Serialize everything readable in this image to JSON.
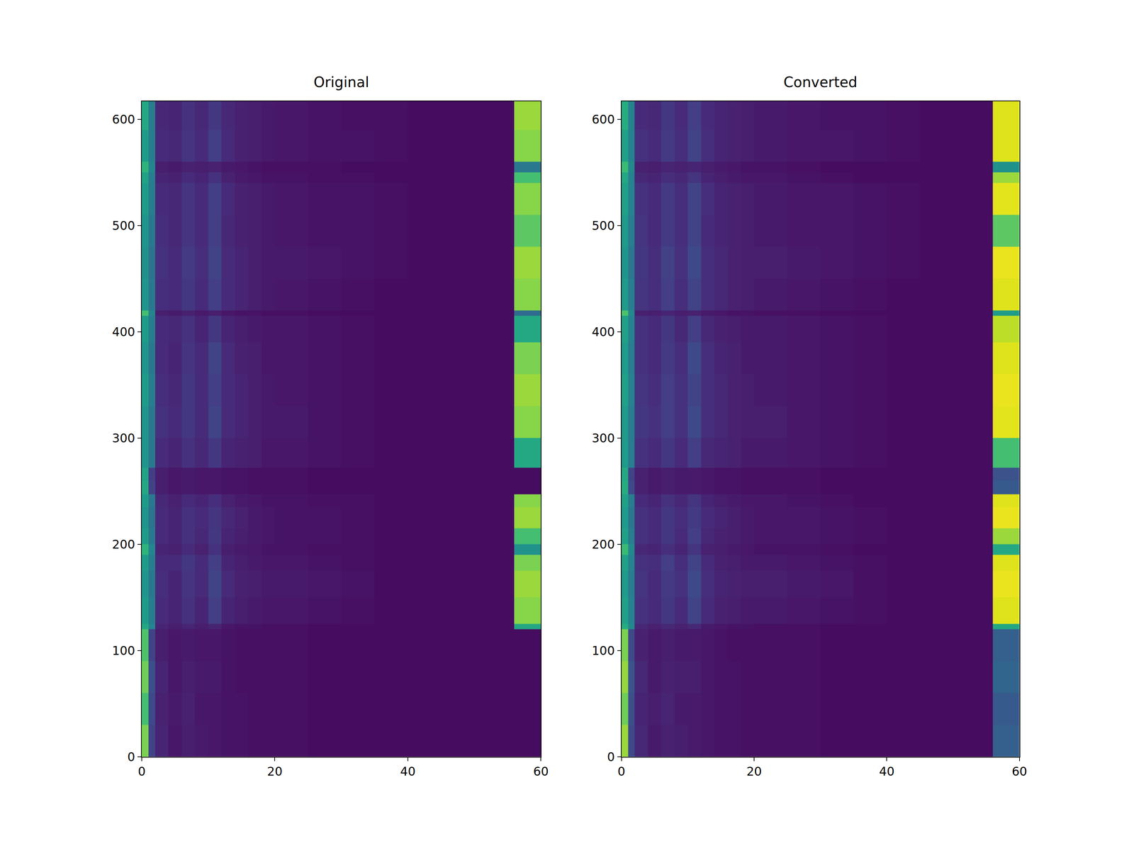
{
  "chart_data": [
    {
      "type": "heatmap",
      "title": "Original",
      "x": [
        0,
        1,
        2,
        4,
        6,
        8,
        10,
        12,
        14,
        16,
        18,
        20,
        25,
        30,
        35,
        40,
        45,
        50,
        56,
        60
      ],
      "y": [
        0,
        30,
        60,
        90,
        120,
        125,
        150,
        175,
        190,
        200,
        215,
        235,
        247,
        260,
        272,
        300,
        330,
        360,
        390,
        415,
        420,
        450,
        480,
        510,
        540,
        550,
        560,
        590,
        617
      ],
      "z": [
        [
          80,
          20,
          10,
          6,
          8,
          7,
          6,
          5,
          5,
          4,
          4,
          4,
          3,
          3,
          3,
          3,
          3,
          3,
          3
        ],
        [
          70,
          22,
          9,
          7,
          9,
          6,
          6,
          5,
          5,
          4,
          4,
          4,
          3,
          3,
          3,
          3,
          3,
          3,
          3
        ],
        [
          78,
          24,
          10,
          6,
          8,
          7,
          7,
          5,
          4,
          4,
          4,
          4,
          3,
          3,
          3,
          3,
          3,
          3,
          3
        ],
        [
          72,
          20,
          8,
          6,
          7,
          6,
          6,
          5,
          4,
          4,
          4,
          4,
          3,
          3,
          3,
          3,
          3,
          3,
          3
        ],
        [
          60,
          45,
          10,
          8,
          10,
          8,
          10,
          6,
          5,
          5,
          4,
          4,
          3,
          3,
          3,
          3,
          3,
          3,
          60
        ],
        [
          55,
          42,
          12,
          10,
          14,
          10,
          18,
          10,
          8,
          7,
          6,
          6,
          5,
          4,
          3,
          3,
          3,
          3,
          82
        ],
        [
          52,
          40,
          13,
          10,
          15,
          12,
          20,
          12,
          9,
          8,
          7,
          7,
          6,
          5,
          3,
          3,
          3,
          3,
          85
        ],
        [
          55,
          42,
          12,
          12,
          16,
          12,
          18,
          10,
          8,
          7,
          6,
          6,
          5,
          4,
          3,
          3,
          3,
          3,
          80
        ],
        [
          65,
          45,
          10,
          9,
          12,
          9,
          14,
          8,
          7,
          6,
          5,
          5,
          4,
          4,
          3,
          3,
          3,
          3,
          50
        ],
        [
          55,
          40,
          12,
          10,
          14,
          11,
          16,
          10,
          8,
          7,
          6,
          5,
          5,
          4,
          3,
          3,
          3,
          3,
          70
        ],
        [
          52,
          38,
          12,
          10,
          14,
          12,
          15,
          11,
          9,
          7,
          6,
          5,
          5,
          4,
          3,
          3,
          3,
          3,
          85
        ],
        [
          55,
          40,
          11,
          9,
          12,
          10,
          13,
          9,
          7,
          6,
          5,
          5,
          4,
          4,
          3,
          3,
          3,
          3,
          82
        ],
        [
          60,
          20,
          8,
          6,
          7,
          6,
          6,
          5,
          5,
          4,
          4,
          4,
          3,
          3,
          3,
          3,
          3,
          3,
          3
        ],
        [
          58,
          18,
          8,
          6,
          7,
          6,
          6,
          5,
          5,
          4,
          4,
          4,
          3,
          3,
          3,
          3,
          3,
          3,
          3
        ],
        [
          52,
          40,
          12,
          10,
          14,
          11,
          16,
          10,
          9,
          8,
          6,
          6,
          5,
          4,
          3,
          3,
          3,
          3,
          60
        ],
        [
          52,
          40,
          14,
          12,
          16,
          12,
          20,
          12,
          10,
          8,
          7,
          7,
          5,
          4,
          3,
          3,
          3,
          3,
          82
        ],
        [
          55,
          42,
          13,
          11,
          16,
          12,
          18,
          12,
          10,
          8,
          7,
          6,
          5,
          4,
          3,
          3,
          3,
          3,
          85
        ],
        [
          52,
          40,
          12,
          10,
          15,
          12,
          20,
          12,
          9,
          8,
          6,
          6,
          5,
          4,
          3,
          3,
          3,
          3,
          80
        ],
        [
          55,
          42,
          12,
          11,
          14,
          10,
          16,
          10,
          8,
          7,
          6,
          6,
          5,
          4,
          3,
          3,
          3,
          3,
          60
        ],
        [
          70,
          45,
          8,
          7,
          9,
          7,
          8,
          6,
          5,
          5,
          4,
          4,
          3,
          3,
          3,
          3,
          3,
          3,
          35
        ],
        [
          52,
          40,
          13,
          12,
          16,
          12,
          18,
          12,
          10,
          8,
          7,
          6,
          5,
          4,
          3,
          3,
          3,
          3,
          82
        ],
        [
          50,
          38,
          14,
          12,
          17,
          13,
          20,
          12,
          10,
          8,
          7,
          7,
          6,
          5,
          4,
          3,
          3,
          3,
          85
        ],
        [
          52,
          40,
          13,
          11,
          15,
          12,
          18,
          11,
          9,
          8,
          7,
          6,
          5,
          5,
          4,
          3,
          3,
          3,
          75
        ],
        [
          55,
          42,
          12,
          11,
          15,
          12,
          18,
          12,
          9,
          8,
          7,
          6,
          5,
          5,
          4,
          3,
          3,
          3,
          82
        ],
        [
          58,
          42,
          10,
          9,
          12,
          10,
          14,
          9,
          7,
          6,
          5,
          5,
          4,
          4,
          3,
          3,
          3,
          3,
          70
        ],
        [
          65,
          45,
          8,
          7,
          9,
          8,
          9,
          7,
          6,
          5,
          4,
          4,
          4,
          3,
          3,
          3,
          3,
          3,
          40
        ],
        [
          55,
          42,
          12,
          11,
          15,
          12,
          18,
          12,
          9,
          8,
          7,
          6,
          5,
          5,
          4,
          3,
          3,
          3,
          82
        ],
        [
          60,
          42,
          11,
          10,
          14,
          11,
          16,
          11,
          9,
          8,
          7,
          6,
          5,
          4,
          4,
          3,
          3,
          3,
          85
        ]
      ],
      "color_range": [
        0,
        100
      ],
      "xlim": [
        0,
        60
      ],
      "xticks": [
        0,
        20,
        40,
        60
      ],
      "ylim": [
        0,
        617
      ],
      "yticks": [
        0,
        100,
        200,
        300,
        400,
        500,
        600
      ]
    },
    {
      "type": "heatmap",
      "title": "Converted",
      "x": [
        0,
        1,
        2,
        4,
        6,
        8,
        10,
        12,
        14,
        16,
        18,
        20,
        25,
        30,
        35,
        40,
        45,
        50,
        56,
        60
      ],
      "y": [
        0,
        30,
        60,
        90,
        120,
        125,
        150,
        175,
        190,
        200,
        215,
        235,
        247,
        260,
        272,
        300,
        330,
        360,
        390,
        415,
        420,
        450,
        480,
        510,
        540,
        550,
        560,
        590,
        617
      ],
      "z": [
        [
          85,
          22,
          11,
          7,
          9,
          8,
          7,
          6,
          5,
          5,
          4,
          4,
          4,
          3,
          3,
          3,
          3,
          3,
          30
        ],
        [
          78,
          24,
          10,
          8,
          10,
          7,
          7,
          6,
          5,
          5,
          4,
          4,
          4,
          3,
          3,
          3,
          3,
          3,
          28
        ],
        [
          84,
          26,
          11,
          7,
          9,
          8,
          8,
          6,
          5,
          5,
          4,
          4,
          4,
          3,
          3,
          3,
          3,
          3,
          32
        ],
        [
          80,
          22,
          9,
          7,
          8,
          7,
          7,
          6,
          5,
          4,
          4,
          4,
          4,
          3,
          3,
          3,
          3,
          3,
          30
        ],
        [
          62,
          47,
          11,
          9,
          11,
          9,
          11,
          7,
          6,
          5,
          5,
          4,
          4,
          3,
          3,
          3,
          3,
          3,
          60
        ],
        [
          57,
          44,
          14,
          12,
          16,
          12,
          20,
          12,
          9,
          8,
          7,
          7,
          6,
          5,
          4,
          3,
          3,
          3,
          95
        ],
        [
          54,
          42,
          15,
          12,
          17,
          14,
          22,
          13,
          10,
          9,
          8,
          8,
          7,
          6,
          4,
          3,
          3,
          3,
          97
        ],
        [
          57,
          44,
          14,
          13,
          18,
          13,
          20,
          12,
          9,
          8,
          7,
          7,
          6,
          5,
          4,
          3,
          3,
          3,
          95
        ],
        [
          68,
          47,
          11,
          10,
          13,
          10,
          15,
          9,
          8,
          7,
          6,
          5,
          5,
          4,
          3,
          3,
          3,
          3,
          60
        ],
        [
          57,
          42,
          14,
          12,
          16,
          12,
          18,
          11,
          9,
          8,
          7,
          6,
          6,
          5,
          4,
          3,
          3,
          3,
          85
        ],
        [
          54,
          40,
          14,
          12,
          16,
          13,
          17,
          12,
          10,
          8,
          7,
          6,
          6,
          5,
          4,
          3,
          3,
          3,
          97
        ],
        [
          57,
          42,
          12,
          10,
          14,
          11,
          15,
          10,
          8,
          7,
          6,
          6,
          5,
          4,
          3,
          3,
          3,
          3,
          95
        ],
        [
          62,
          22,
          9,
          7,
          8,
          7,
          7,
          6,
          5,
          5,
          4,
          4,
          4,
          3,
          3,
          3,
          3,
          3,
          28
        ],
        [
          60,
          20,
          9,
          7,
          8,
          7,
          7,
          6,
          5,
          5,
          4,
          4,
          4,
          3,
          3,
          3,
          3,
          3,
          25
        ],
        [
          54,
          42,
          14,
          12,
          16,
          12,
          18,
          11,
          10,
          9,
          7,
          7,
          6,
          5,
          4,
          3,
          3,
          3,
          70
        ],
        [
          54,
          42,
          16,
          14,
          18,
          14,
          22,
          13,
          11,
          9,
          8,
          8,
          6,
          5,
          4,
          3,
          3,
          3,
          96
        ],
        [
          57,
          44,
          15,
          13,
          18,
          14,
          20,
          13,
          11,
          9,
          8,
          7,
          6,
          5,
          4,
          3,
          3,
          3,
          97
        ],
        [
          54,
          42,
          14,
          12,
          17,
          13,
          22,
          13,
          10,
          9,
          7,
          7,
          6,
          5,
          4,
          3,
          3,
          3,
          95
        ],
        [
          57,
          44,
          14,
          12,
          16,
          11,
          18,
          11,
          9,
          8,
          7,
          7,
          6,
          5,
          4,
          3,
          3,
          3,
          90
        ],
        [
          72,
          47,
          9,
          8,
          10,
          8,
          9,
          7,
          6,
          5,
          5,
          4,
          4,
          3,
          3,
          3,
          3,
          3,
          55
        ],
        [
          54,
          42,
          15,
          13,
          18,
          13,
          20,
          13,
          11,
          9,
          8,
          7,
          6,
          5,
          4,
          3,
          3,
          3,
          95
        ],
        [
          52,
          40,
          16,
          13,
          19,
          14,
          22,
          13,
          11,
          9,
          8,
          8,
          7,
          6,
          5,
          4,
          3,
          3,
          97
        ],
        [
          54,
          42,
          15,
          12,
          17,
          13,
          20,
          12,
          10,
          9,
          8,
          7,
          6,
          6,
          5,
          4,
          3,
          3,
          75
        ],
        [
          57,
          44,
          14,
          12,
          17,
          13,
          20,
          13,
          10,
          9,
          8,
          7,
          6,
          6,
          5,
          4,
          3,
          3,
          96
        ],
        [
          60,
          44,
          11,
          10,
          13,
          11,
          15,
          10,
          8,
          7,
          6,
          6,
          5,
          4,
          3,
          3,
          3,
          3,
          85
        ],
        [
          68,
          47,
          9,
          8,
          10,
          9,
          10,
          8,
          7,
          6,
          5,
          5,
          4,
          3,
          3,
          3,
          3,
          3,
          50
        ],
        [
          57,
          44,
          14,
          12,
          17,
          13,
          20,
          13,
          10,
          9,
          8,
          7,
          6,
          6,
          5,
          4,
          3,
          3,
          95
        ],
        [
          62,
          44,
          12,
          11,
          16,
          12,
          18,
          12,
          10,
          9,
          8,
          7,
          6,
          5,
          5,
          4,
          3,
          3,
          95
        ]
      ],
      "color_range": [
        0,
        100
      ],
      "xlim": [
        0,
        60
      ],
      "xticks": [
        0,
        20,
        40,
        60
      ],
      "ylim": [
        0,
        617
      ],
      "yticks": [
        0,
        100,
        200,
        300,
        400,
        500,
        600
      ]
    }
  ]
}
